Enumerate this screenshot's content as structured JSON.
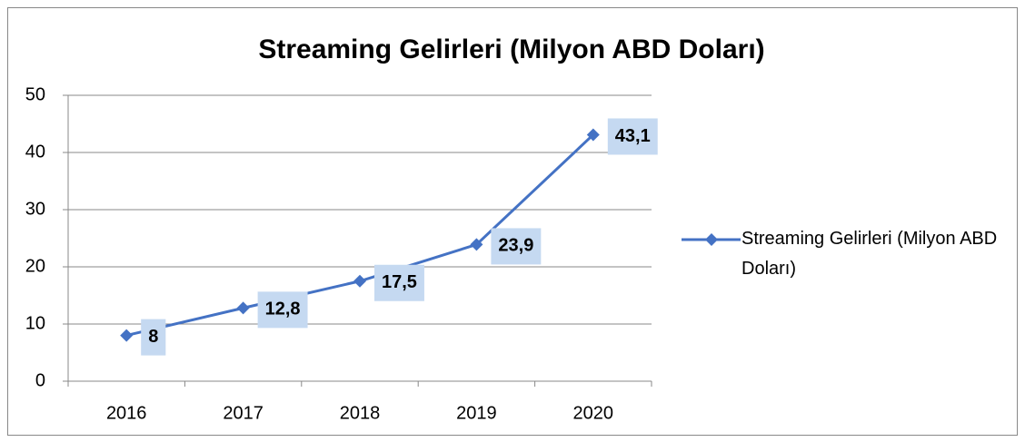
{
  "chart_data": {
    "type": "line",
    "title": "Streaming Gelirleri (Milyon ABD Doları)",
    "categories": [
      "2016",
      "2017",
      "2018",
      "2019",
      "2020"
    ],
    "series": [
      {
        "name": "Streaming Gelirleri (Milyon ABD Doları)",
        "color": "#4472c4",
        "values": [
          8,
          12.8,
          17.5,
          23.9,
          43.1
        ],
        "value_labels": [
          "8",
          "12,8",
          "17,5",
          "23,9",
          "43,1"
        ]
      }
    ],
    "ylim": [
      0,
      50
    ],
    "yticks": [
      0,
      10,
      20,
      30,
      40,
      50
    ],
    "grid": true,
    "legend": "right"
  }
}
